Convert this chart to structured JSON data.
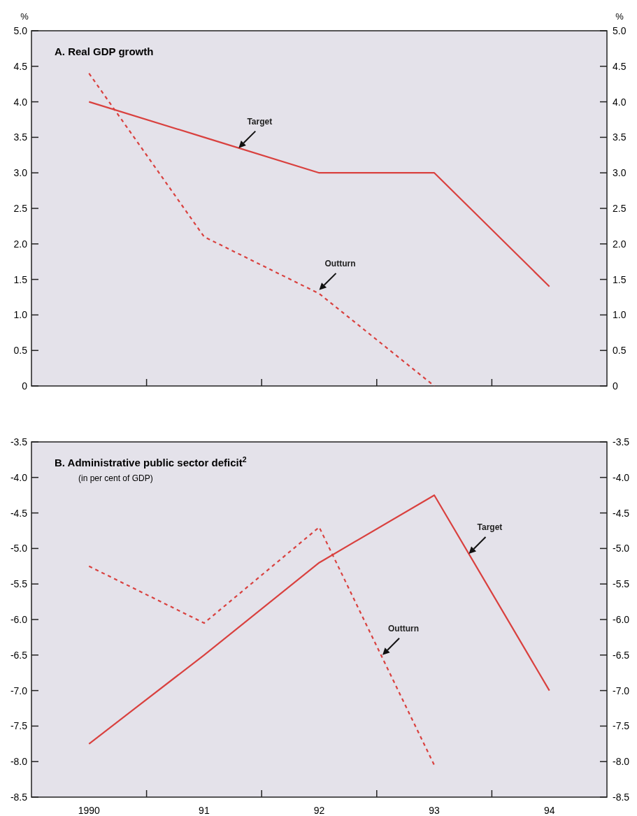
{
  "chart_data": [
    {
      "type": "line",
      "title": "A. Real GDP growth",
      "ylabel": "%",
      "y2label": "%",
      "x": [
        1990,
        1991,
        1992,
        1993,
        1994
      ],
      "series": [
        {
          "color": "#d9413f",
          "line_style": "solid",
          "values": [
            4.0,
            3.5,
            3.0,
            3.0,
            1.4
          ]
        },
        {
          "color": "#d9413f",
          "line_style": "dashed",
          "values": [
            4.4,
            2.1,
            1.3,
            0.0,
            null
          ]
        }
      ],
      "xlim": [
        1989.5,
        1994.5
      ],
      "xticks": [
        {
          "value": 1990.5,
          "label": null
        },
        {
          "value": 1991.5,
          "label": null
        },
        {
          "value": 1992.5,
          "label": null
        },
        {
          "value": 1993.5,
          "label": null
        }
      ],
      "ylim": [
        0,
        5.0
      ],
      "yticks": [
        0,
        {
          "value": 0.5,
          "label": "0.5"
        },
        {
          "value": 1,
          "label": "1.0"
        },
        {
          "value": 1.5,
          "label": "1.5"
        },
        {
          "value": 2,
          "label": "2.0"
        },
        {
          "value": 2.5,
          "label": "2.5"
        },
        {
          "value": 3,
          "label": "3.0"
        },
        {
          "value": 3.5,
          "label": "3.5"
        },
        {
          "value": 4,
          "label": "4.0"
        },
        {
          "value": 4.5,
          "label": "4.5"
        },
        {
          "value": 5,
          "label": "5.0"
        }
      ],
      "y2lim": [
        0,
        5.0
      ],
      "y2ticks": [
        0,
        {
          "value": 0.5,
          "label": "0.5"
        },
        {
          "value": 1,
          "label": "1.0"
        },
        {
          "value": 1.5,
          "label": "1.5"
        },
        {
          "value": 2,
          "label": "2.0"
        },
        {
          "value": 2.5,
          "label": "2.5"
        },
        {
          "value": 3,
          "label": "3.0"
        },
        {
          "value": 3.5,
          "label": "3.5"
        },
        {
          "value": 4,
          "label": "4.0"
        },
        {
          "value": 4.5,
          "label": "4.5"
        },
        {
          "value": 5,
          "label": "5.0"
        }
      ],
      "tick_labels": "y",
      "annotations": [
        {
          "text": "Target",
          "x": 1991.3,
          "y": 3.35
        },
        {
          "text": "Outturn",
          "x": 1992,
          "y": 1.35
        }
      ]
    },
    {
      "type": "line",
      "title": "B. Administrative public sector deficit$^{2}$",
      "subtitle": "(in per cent of GDP)",
      "x": [
        1990,
        1991,
        1992,
        1993,
        1994
      ],
      "series": [
        {
          "color": "#d9413f",
          "line_style": "solid",
          "values": [
            -7.75,
            -6.5,
            -5.2,
            -4.25,
            -7.0
          ]
        },
        {
          "color": "#d9413f",
          "line_style": "dashed",
          "values": [
            -5.25,
            -6.05,
            -4.7,
            -8.05,
            null
          ]
        }
      ],
      "xlim": [
        1989.5,
        1994.5
      ],
      "xticks": [
        {
          "value": 1990,
          "label": "1990"
        },
        {
          "value": 1990.5,
          "label": null
        },
        {
          "value": 1991,
          "label": "91"
        },
        {
          "value": 1991.5,
          "label": null
        },
        {
          "value": 1992,
          "label": "92"
        },
        {
          "value": 1992.5,
          "label": null
        },
        {
          "value": 1993,
          "label": "93"
        },
        {
          "value": 1993.5,
          "label": null
        },
        {
          "value": 1994,
          "label": "94"
        }
      ],
      "ylim": [
        -8.5,
        -3.5
      ],
      "yticks": [
        {
          "value": -8.5,
          "label": "-8.5"
        },
        {
          "value": -8,
          "label": "-8.0"
        },
        {
          "value": -7.5,
          "label": "-7.5"
        },
        {
          "value": -7,
          "label": "-7.0"
        },
        {
          "value": -6.5,
          "label": "-6.5"
        },
        {
          "value": -6,
          "label": "-6.0"
        },
        {
          "value": -5.5,
          "label": "-5.5"
        },
        {
          "value": -5,
          "label": "-5.0"
        },
        {
          "value": -4.5,
          "label": "-4.5"
        },
        {
          "value": -4,
          "label": "-4.0"
        },
        {
          "value": -3.5,
          "label": "-3.5"
        }
      ],
      "y2lim": [
        -8.5,
        -3.5
      ],
      "y2ticks": [
        {
          "value": -8.5,
          "label": "-8.5"
        },
        {
          "value": -8,
          "label": "-8.0"
        },
        {
          "value": -7.5,
          "label": "-7.5"
        },
        {
          "value": -7,
          "label": "-7.0"
        },
        {
          "value": -6.5,
          "label": "-6.5"
        },
        {
          "value": -6,
          "label": "-6.0"
        },
        {
          "value": -5.5,
          "label": "-5.5"
        },
        {
          "value": -5,
          "label": "-5.0"
        },
        {
          "value": -4.5,
          "label": "-4.5"
        },
        {
          "value": -4,
          "label": "-4.0"
        },
        {
          "value": -3.5,
          "label": "-3.5"
        }
      ],
      "annotations": [
        {
          "text": "Target",
          "x": 1993.3,
          "y": -5.075
        },
        {
          "text": "Outturn",
          "x": 1992.55,
          "y": -6.5
        }
      ]
    }
  ]
}
